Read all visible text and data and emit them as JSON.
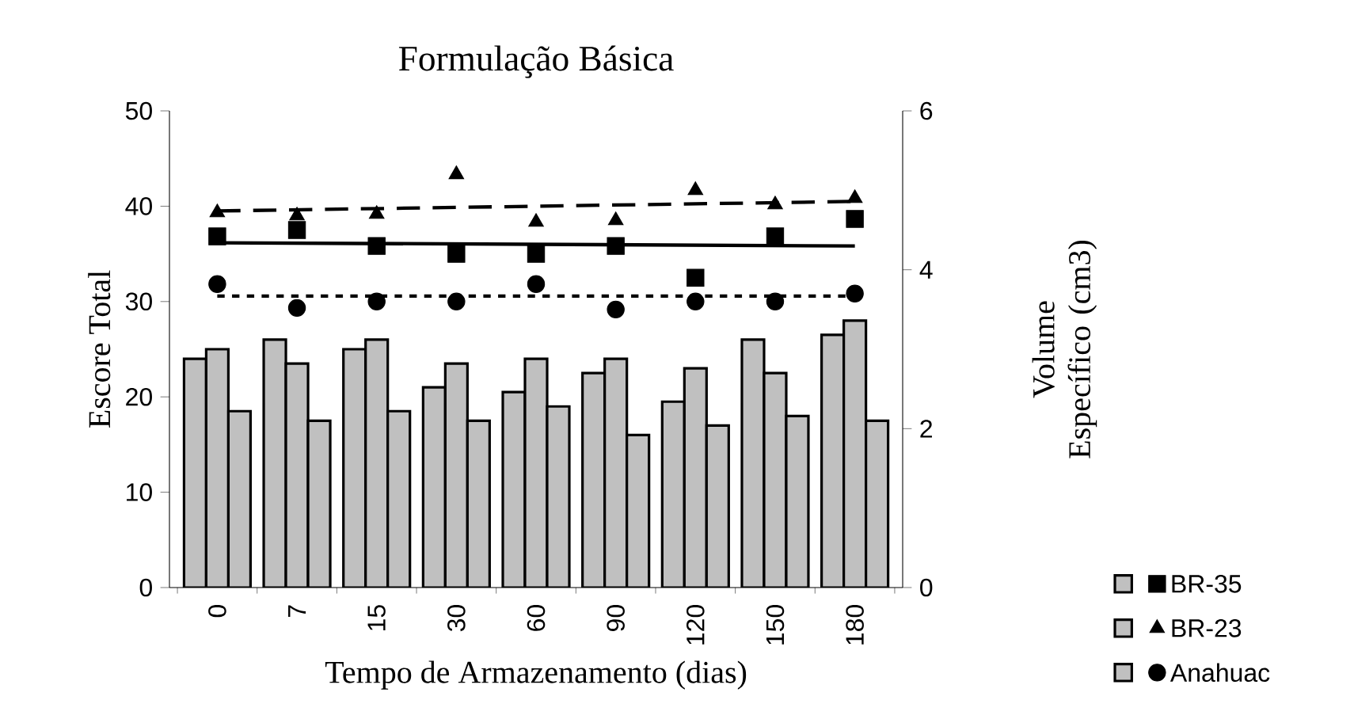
{
  "chart_data": {
    "type": "bar",
    "title": "Formulação Básica",
    "xlabel": "Tempo de Armazenamento (dias)",
    "ylabel": "Escore Total",
    "y2label": "Volume Específico (cm3)",
    "categories": [
      "0",
      "7",
      "15",
      "30",
      "60",
      "90",
      "120",
      "150",
      "180"
    ],
    "ylim": [
      0,
      50
    ],
    "yticks": [
      0,
      10,
      20,
      30,
      40,
      50
    ],
    "y2lim": [
      0,
      6
    ],
    "y2ticks": [
      0,
      2,
      4,
      6
    ],
    "legend": "bottom right",
    "series": [
      {
        "color": "#c0c0c0",
        "values": [
          24,
          26,
          25,
          21,
          20.5,
          22.5,
          19.5,
          26,
          26.5
        ]
      },
      {
        "color": "#c0c0c0",
        "values": [
          25,
          23.5,
          26,
          23.5,
          24,
          24,
          23,
          22.5,
          28
        ]
      },
      {
        "color": "#c0c0c0",
        "values": [
          18.5,
          17.5,
          18.5,
          17.5,
          19,
          16,
          17,
          18,
          17.5
        ]
      },
      {
        "type": "scatter",
        "name": "BR-35",
        "axis": "y2",
        "marker": "square",
        "color": "#000000",
        "values": [
          4.42,
          4.5,
          4.3,
          4.2,
          4.2,
          4.3,
          3.9,
          4.42,
          4.64
        ]
      },
      {
        "type": "scatter",
        "name": "BR-23",
        "axis": "y2",
        "marker": "triangle",
        "color": "#000000",
        "values": [
          4.72,
          4.68,
          4.7,
          5.2,
          4.6,
          4.62,
          5.0,
          4.82,
          4.9
        ]
      },
      {
        "type": "scatter",
        "name": "Anahuac",
        "axis": "y2",
        "marker": "circle",
        "color": "#000000",
        "values": [
          3.82,
          3.52,
          3.6,
          3.6,
          3.82,
          3.5,
          3.6,
          3.6,
          3.7
        ]
      },
      {
        "type": "line",
        "axis": "y2",
        "line_style": "solid",
        "color": "#000000",
        "x": [
          "0",
          "180"
        ],
        "values": [
          4.34,
          4.3
        ]
      },
      {
        "type": "line",
        "axis": "y2",
        "line_style": "dashed",
        "color": "#000000",
        "x": [
          "0",
          "180"
        ],
        "values": [
          4.74,
          4.86
        ]
      },
      {
        "type": "line",
        "axis": "y2",
        "line_style": "dotted",
        "color": "#000000",
        "x": [
          "0",
          "180"
        ],
        "values": [
          3.67,
          3.67
        ]
      }
    ]
  }
}
